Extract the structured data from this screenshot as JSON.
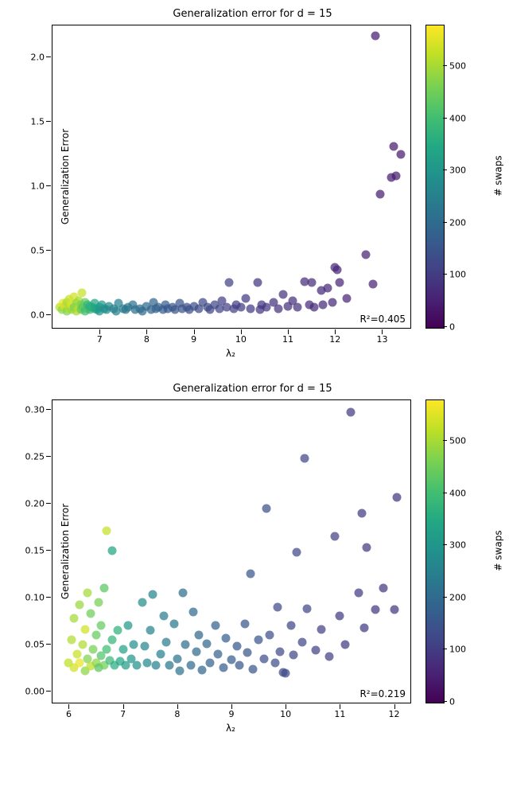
{
  "common": {
    "colorbar_label": "# swaps",
    "colorbar_vmin": 0,
    "colorbar_vmax": 580,
    "colorbar_ticks": [
      0,
      100,
      200,
      300,
      400,
      500
    ],
    "viridis_stops": [
      [
        0.0,
        "#440154"
      ],
      [
        0.1,
        "#482475"
      ],
      [
        0.2,
        "#414487"
      ],
      [
        0.3,
        "#355f8d"
      ],
      [
        0.4,
        "#2a788e"
      ],
      [
        0.5,
        "#21918c"
      ],
      [
        0.6,
        "#22a884"
      ],
      [
        0.7,
        "#44bf70"
      ],
      [
        0.8,
        "#7ad151"
      ],
      [
        0.9,
        "#bddf26"
      ],
      [
        1.0,
        "#fde725"
      ]
    ],
    "figure_width": 640,
    "figure_height": 989,
    "marker_size": 11,
    "marker_opacity": 0.72,
    "background_color": "#ffffff",
    "border_color": "#000000",
    "font_family": "DejaVu Sans",
    "title_fontsize": 13,
    "label_fontsize": 12,
    "tick_fontsize": 11
  },
  "charts": [
    {
      "id": "top",
      "title": "Generalization error for d = 15",
      "type": "scatter",
      "xlabel": "λ₂",
      "ylabel": "Generalization Error",
      "r2_annotation": "R²=0.405",
      "xlim": [
        6.0,
        13.6
      ],
      "ylim": [
        -0.1,
        2.25
      ],
      "yticks": [
        0.0,
        0.5,
        1.0,
        1.5,
        2.0
      ],
      "ytick_labels": [
        "0.0",
        "0.5",
        "1.0",
        "1.5",
        "2.0"
      ],
      "xticks": [
        7,
        8,
        9,
        10,
        11,
        12,
        13
      ],
      "points": [
        [
          6.15,
          0.06,
          520
        ],
        [
          6.2,
          0.04,
          480
        ],
        [
          6.22,
          0.09,
          560
        ],
        [
          6.25,
          0.07,
          540
        ],
        [
          6.3,
          0.03,
          470
        ],
        [
          6.3,
          0.1,
          500
        ],
        [
          6.35,
          0.05,
          510
        ],
        [
          6.35,
          0.12,
          530
        ],
        [
          6.4,
          0.04,
          490
        ],
        [
          6.4,
          0.08,
          550
        ],
        [
          6.45,
          0.06,
          460
        ],
        [
          6.45,
          0.14,
          540
        ],
        [
          6.5,
          0.03,
          500
        ],
        [
          6.5,
          0.09,
          480
        ],
        [
          6.55,
          0.05,
          520
        ],
        [
          6.55,
          0.11,
          500
        ],
        [
          6.6,
          0.04,
          440
        ],
        [
          6.6,
          0.08,
          460
        ],
        [
          6.62,
          0.17,
          530
        ],
        [
          6.65,
          0.06,
          430
        ],
        [
          6.7,
          0.03,
          400
        ],
        [
          6.7,
          0.1,
          440
        ],
        [
          6.75,
          0.05,
          420
        ],
        [
          6.75,
          0.08,
          380
        ],
        [
          6.8,
          0.04,
          390
        ],
        [
          6.8,
          0.07,
          360
        ],
        [
          6.85,
          0.06,
          370
        ],
        [
          6.9,
          0.05,
          350
        ],
        [
          6.9,
          0.09,
          340
        ],
        [
          6.95,
          0.04,
          330
        ],
        [
          7.0,
          0.06,
          320
        ],
        [
          7.0,
          0.03,
          300
        ],
        [
          7.05,
          0.08,
          310
        ],
        [
          7.1,
          0.05,
          290
        ],
        [
          7.15,
          0.04,
          280
        ],
        [
          7.2,
          0.07,
          270
        ],
        [
          7.3,
          0.05,
          260
        ],
        [
          7.35,
          0.03,
          250
        ],
        [
          7.4,
          0.09,
          250
        ],
        [
          7.5,
          0.05,
          240
        ],
        [
          7.55,
          0.04,
          230
        ],
        [
          7.6,
          0.06,
          230
        ],
        [
          7.7,
          0.08,
          220
        ],
        [
          7.75,
          0.04,
          210
        ],
        [
          7.85,
          0.05,
          210
        ],
        [
          7.9,
          0.03,
          200
        ],
        [
          8.0,
          0.07,
          200
        ],
        [
          8.1,
          0.04,
          190
        ],
        [
          8.15,
          0.1,
          190
        ],
        [
          8.2,
          0.05,
          180
        ],
        [
          8.25,
          0.06,
          180
        ],
        [
          8.35,
          0.04,
          170
        ],
        [
          8.4,
          0.08,
          170
        ],
        [
          8.45,
          0.05,
          160
        ],
        [
          8.55,
          0.06,
          160
        ],
        [
          8.6,
          0.04,
          150
        ],
        [
          8.7,
          0.09,
          150
        ],
        [
          8.75,
          0.05,
          150
        ],
        [
          8.85,
          0.06,
          140
        ],
        [
          8.9,
          0.04,
          140
        ],
        [
          9.0,
          0.07,
          140
        ],
        [
          9.1,
          0.05,
          130
        ],
        [
          9.2,
          0.1,
          130
        ],
        [
          9.3,
          0.06,
          130
        ],
        [
          9.35,
          0.04,
          120
        ],
        [
          9.45,
          0.08,
          120
        ],
        [
          9.55,
          0.05,
          120
        ],
        [
          9.6,
          0.11,
          110
        ],
        [
          9.7,
          0.06,
          110
        ],
        [
          9.75,
          0.25,
          110
        ],
        [
          9.85,
          0.05,
          110
        ],
        [
          9.9,
          0.08,
          100
        ],
        [
          10.0,
          0.06,
          100
        ],
        [
          10.1,
          0.13,
          100
        ],
        [
          10.2,
          0.05,
          100
        ],
        [
          10.35,
          0.25,
          90
        ],
        [
          10.4,
          0.04,
          90
        ],
        [
          10.45,
          0.08,
          90
        ],
        [
          10.55,
          0.06,
          90
        ],
        [
          10.7,
          0.1,
          85
        ],
        [
          10.8,
          0.05,
          85
        ],
        [
          10.9,
          0.16,
          85
        ],
        [
          11.0,
          0.07,
          80
        ],
        [
          11.1,
          0.11,
          80
        ],
        [
          11.2,
          0.06,
          80
        ],
        [
          11.35,
          0.26,
          75
        ],
        [
          11.45,
          0.08,
          75
        ],
        [
          11.5,
          0.25,
          75
        ],
        [
          11.55,
          0.06,
          70
        ],
        [
          11.7,
          0.19,
          70
        ],
        [
          11.75,
          0.08,
          70
        ],
        [
          11.85,
          0.21,
          65
        ],
        [
          11.95,
          0.1,
          65
        ],
        [
          12.0,
          0.37,
          65
        ],
        [
          12.05,
          0.35,
          60
        ],
        [
          12.1,
          0.25,
          60
        ],
        [
          12.25,
          0.13,
          60
        ],
        [
          12.65,
          0.47,
          55
        ],
        [
          12.8,
          0.24,
          55
        ],
        [
          12.85,
          2.17,
          50
        ],
        [
          12.95,
          0.94,
          50
        ],
        [
          13.2,
          1.07,
          50
        ],
        [
          13.25,
          1.31,
          45
        ],
        [
          13.3,
          1.08,
          45
        ],
        [
          13.4,
          1.25,
          45
        ]
      ]
    },
    {
      "id": "bottom",
      "title": "Generalization error for d = 15",
      "type": "scatter",
      "xlabel": "λ₂",
      "ylabel": "Generalization Error",
      "r2_annotation": "R²=0.219",
      "xlim": [
        5.7,
        12.3
      ],
      "ylim": [
        -0.012,
        0.31
      ],
      "yticks": [
        0.0,
        0.05,
        0.1,
        0.15,
        0.2,
        0.25,
        0.3
      ],
      "ytick_labels": [
        "0.00",
        "0.05",
        "0.10",
        "0.15",
        "0.20",
        "0.25",
        "0.30"
      ],
      "xticks": [
        6,
        7,
        8,
        9,
        10,
        11,
        12
      ],
      "points": [
        [
          6.0,
          0.03,
          520
        ],
        [
          6.05,
          0.055,
          510
        ],
        [
          6.1,
          0.025,
          540
        ],
        [
          6.1,
          0.078,
          500
        ],
        [
          6.15,
          0.04,
          530
        ],
        [
          6.2,
          0.092,
          490
        ],
        [
          6.2,
          0.03,
          560
        ],
        [
          6.25,
          0.05,
          510
        ],
        [
          6.3,
          0.022,
          480
        ],
        [
          6.3,
          0.066,
          540
        ],
        [
          6.35,
          0.035,
          470
        ],
        [
          6.35,
          0.105,
          500
        ],
        [
          6.4,
          0.027,
          520
        ],
        [
          6.4,
          0.083,
          450
        ],
        [
          6.45,
          0.045,
          460
        ],
        [
          6.5,
          0.03,
          480
        ],
        [
          6.5,
          0.06,
          440
        ],
        [
          6.55,
          0.025,
          430
        ],
        [
          6.55,
          0.095,
          460
        ],
        [
          6.6,
          0.038,
          420
        ],
        [
          6.6,
          0.07,
          440
        ],
        [
          6.65,
          0.028,
          450
        ],
        [
          6.65,
          0.11,
          430
        ],
        [
          6.7,
          0.045,
          400
        ],
        [
          6.7,
          0.171,
          530
        ],
        [
          6.75,
          0.033,
          390
        ],
        [
          6.8,
          0.15,
          340
        ],
        [
          6.8,
          0.055,
          380
        ],
        [
          6.85,
          0.028,
          360
        ],
        [
          6.9,
          0.065,
          370
        ],
        [
          6.95,
          0.032,
          340
        ],
        [
          7.0,
          0.045,
          330
        ],
        [
          7.05,
          0.028,
          320
        ],
        [
          7.1,
          0.07,
          310
        ],
        [
          7.15,
          0.035,
          300
        ],
        [
          7.2,
          0.05,
          290
        ],
        [
          7.25,
          0.028,
          290
        ],
        [
          7.35,
          0.095,
          280
        ],
        [
          7.4,
          0.048,
          270
        ],
        [
          7.45,
          0.03,
          270
        ],
        [
          7.5,
          0.065,
          260
        ],
        [
          7.55,
          0.103,
          260
        ],
        [
          7.6,
          0.028,
          250
        ],
        [
          7.7,
          0.04,
          250
        ],
        [
          7.75,
          0.08,
          240
        ],
        [
          7.8,
          0.052,
          240
        ],
        [
          7.85,
          0.028,
          230
        ],
        [
          7.95,
          0.072,
          230
        ],
        [
          8.0,
          0.035,
          220
        ],
        [
          8.05,
          0.022,
          220
        ],
        [
          8.1,
          0.105,
          210
        ],
        [
          8.15,
          0.05,
          210
        ],
        [
          8.25,
          0.028,
          200
        ],
        [
          8.3,
          0.085,
          200
        ],
        [
          8.35,
          0.042,
          200
        ],
        [
          8.4,
          0.06,
          190
        ],
        [
          8.45,
          0.023,
          190
        ],
        [
          8.55,
          0.051,
          190
        ],
        [
          8.6,
          0.03,
          180
        ],
        [
          8.7,
          0.07,
          180
        ],
        [
          8.75,
          0.04,
          180
        ],
        [
          8.85,
          0.025,
          170
        ],
        [
          8.9,
          0.057,
          170
        ],
        [
          9.0,
          0.034,
          170
        ],
        [
          9.1,
          0.048,
          160
        ],
        [
          9.15,
          0.028,
          160
        ],
        [
          9.25,
          0.072,
          160
        ],
        [
          9.3,
          0.041,
          150
        ],
        [
          9.35,
          0.125,
          150
        ],
        [
          9.4,
          0.024,
          150
        ],
        [
          9.5,
          0.055,
          150
        ],
        [
          9.6,
          0.035,
          140
        ],
        [
          9.65,
          0.195,
          140
        ],
        [
          9.7,
          0.06,
          140
        ],
        [
          9.8,
          0.03,
          140
        ],
        [
          9.85,
          0.09,
          130
        ],
        [
          9.9,
          0.042,
          130
        ],
        [
          9.95,
          0.02,
          130
        ],
        [
          10.0,
          0.019,
          130
        ],
        [
          10.1,
          0.07,
          120
        ],
        [
          10.15,
          0.039,
          120
        ],
        [
          10.2,
          0.148,
          120
        ],
        [
          10.3,
          0.052,
          120
        ],
        [
          10.35,
          0.248,
          120
        ],
        [
          10.4,
          0.088,
          120
        ],
        [
          10.55,
          0.044,
          110
        ],
        [
          10.65,
          0.066,
          110
        ],
        [
          10.8,
          0.037,
          110
        ],
        [
          10.9,
          0.165,
          110
        ],
        [
          11.0,
          0.08,
          100
        ],
        [
          11.1,
          0.05,
          100
        ],
        [
          11.2,
          0.297,
          100
        ],
        [
          11.35,
          0.105,
          100
        ],
        [
          11.4,
          0.19,
          100
        ],
        [
          11.45,
          0.068,
          100
        ],
        [
          11.5,
          0.153,
          95
        ],
        [
          11.65,
          0.087,
          95
        ],
        [
          11.8,
          0.11,
          95
        ],
        [
          12.0,
          0.087,
          90
        ],
        [
          12.05,
          0.207,
          90
        ]
      ]
    }
  ]
}
